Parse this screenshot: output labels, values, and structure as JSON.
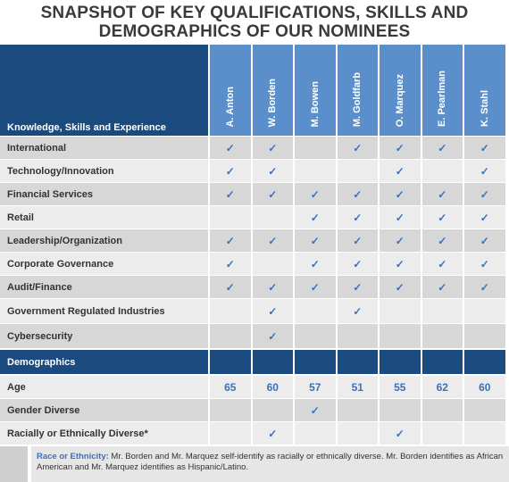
{
  "header": {
    "title_lines": [
      "SNAPSHOT OF KEY QUALIFICATIONS, SKILLS AND",
      "DEMOGRAPHICS OF OUR NOMINEES"
    ]
  },
  "table": {
    "corner_header": "Knowledge, Skills and Experience",
    "columns": [
      "A. Anton",
      "W. Borden",
      "M. Bowen",
      "M. Goldfarb",
      "O. Marquez",
      "E. Pearlman",
      "K. Stahl"
    ],
    "rows": [
      {
        "label": "International",
        "cells": [
          "✓",
          "✓",
          null,
          "✓",
          "✓",
          "✓",
          "✓"
        ]
      },
      {
        "label": "Technology/Innovation",
        "cells": [
          "✓",
          "✓",
          null,
          null,
          "✓",
          null,
          "✓"
        ]
      },
      {
        "label": "Financial Services",
        "cells": [
          "✓",
          "✓",
          "✓",
          "✓",
          "✓",
          "✓",
          "✓"
        ]
      },
      {
        "label": "Retail",
        "cells": [
          null,
          null,
          "✓",
          "✓",
          "✓",
          "✓",
          "✓"
        ]
      },
      {
        "label": "Leadership/Organization",
        "cells": [
          "✓",
          "✓",
          "✓",
          "✓",
          "✓",
          "✓",
          "✓"
        ]
      },
      {
        "label": "Corporate Governance",
        "cells": [
          "✓",
          null,
          "✓",
          "✓",
          "✓",
          "✓",
          "✓"
        ]
      },
      {
        "label": "Audit/Finance",
        "cells": [
          "✓",
          "✓",
          "✓",
          "✓",
          "✓",
          "✓",
          "✓"
        ]
      },
      {
        "label": "Government Regulated Industries",
        "cells": [
          null,
          "✓",
          null,
          "✓",
          null,
          null,
          null
        ]
      },
      {
        "label": "Cybersecurity",
        "cells": [
          null,
          "✓",
          null,
          null,
          null,
          null,
          null
        ]
      }
    ],
    "section_label": "Demographics",
    "demographic_rows": [
      {
        "label": "Age",
        "cells": [
          65,
          60,
          57,
          51,
          55,
          62,
          60
        ]
      },
      {
        "label": "Gender Diverse",
        "cells": [
          null,
          null,
          "✓",
          null,
          null,
          null,
          null
        ]
      },
      {
        "label": "Racially or Ethnically Diverse*",
        "cells": [
          null,
          "✓",
          null,
          null,
          "✓",
          null,
          null
        ]
      }
    ]
  },
  "footnote": {
    "label": "Race or Ethnicity:",
    "text": " Mr. Borden and Mr. Marquez self-identify as racially or ethnically diverse. Mr. Borden identifies as African American and Mr. Marquez identifies as Hispanic/Latino."
  }
}
